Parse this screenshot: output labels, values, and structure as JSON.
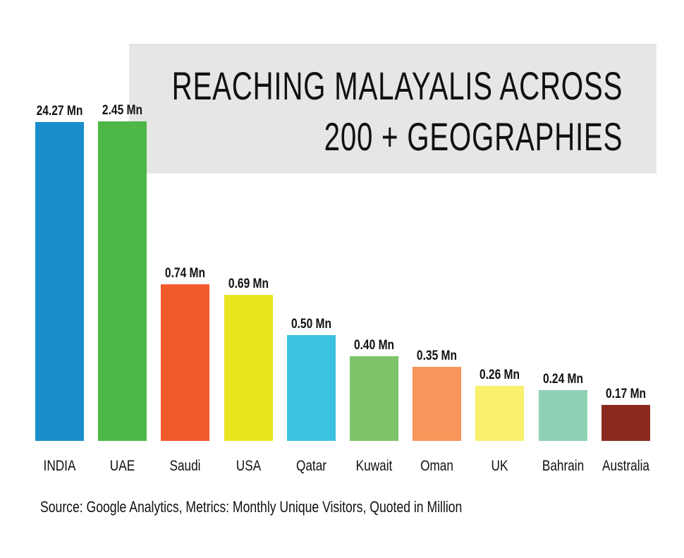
{
  "title": {
    "line1": "REACHING MALAYALIS ACROSS",
    "line2": "200 + GEOGRAPHIES"
  },
  "source_note": "Source: Google Analytics, Metrics: Monthly Unique Visitors, Quoted in Million",
  "chart_data": {
    "type": "bar",
    "title": "REACHING MALAYALIS ACROSS 200 + GEOGRAPHIES",
    "xlabel": "",
    "ylabel": "",
    "unit": "Mn",
    "grid": false,
    "scale": "non-linear (broken axis)",
    "categories": [
      "INDIA",
      "UAE",
      "Saudi",
      "USA",
      "Qatar",
      "Kuwait",
      "Oman",
      "UK",
      "Bahrain",
      "Australia"
    ],
    "values": [
      24.27,
      2.45,
      0.74,
      0.69,
      0.5,
      0.4,
      0.35,
      0.26,
      0.24,
      0.17
    ],
    "data_labels": [
      "24.27 Mn",
      "2.45 Mn",
      "0.74 Mn",
      "0.69 Mn",
      "0.50 Mn",
      "0.40 Mn",
      "0.35 Mn",
      "0.26 Mn",
      "0.24 Mn",
      "0.17 Mn"
    ],
    "colors": [
      "#1a8ecb",
      "#4db848",
      "#f15a29",
      "#e8e51e",
      "#3bc2e0",
      "#7dc36a",
      "#f7955a",
      "#f9f06b",
      "#8fd1b5",
      "#8b2a1c"
    ]
  }
}
